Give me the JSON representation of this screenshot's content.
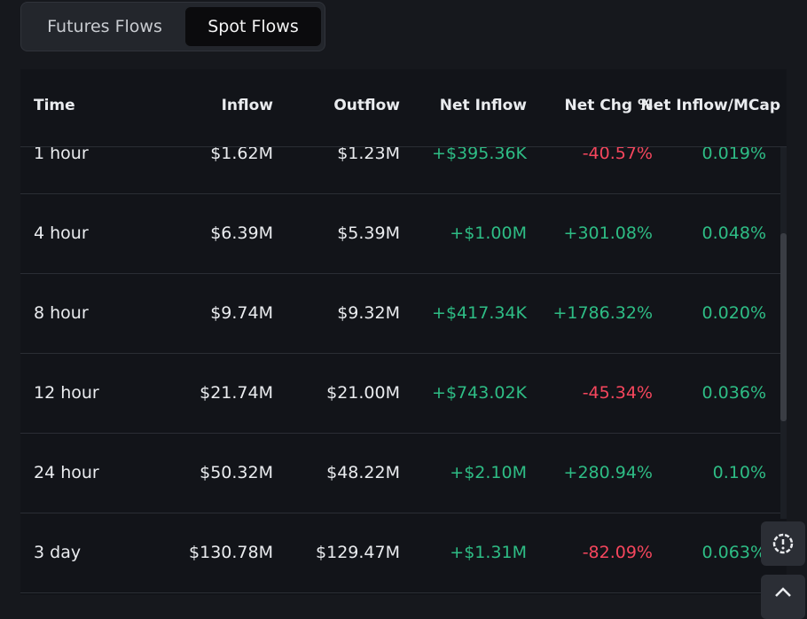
{
  "tabs": [
    "Futures Flows",
    "Spot Flows"
  ],
  "active_tab": 1,
  "table": {
    "columns": [
      "Time",
      "Inflow",
      "Outflow",
      "Net Inflow",
      "Net Chg %",
      "Net Inflow/MCap"
    ],
    "rows": [
      [
        "1 hour",
        "$1.62M",
        "$1.23M",
        "+$395.36K",
        "-40.57%",
        "0.019%"
      ],
      [
        "4 hour",
        "$6.39M",
        "$5.39M",
        "+$1.00M",
        "+301.08%",
        "0.048%"
      ],
      [
        "8 hour",
        "$9.74M",
        "$9.32M",
        "+$417.34K",
        "+1786.32%",
        "0.020%"
      ],
      [
        "12 hour",
        "$21.74M",
        "$21.00M",
        "+$743.02K",
        "-45.34%",
        "0.036%"
      ],
      [
        "24 hour",
        "$50.32M",
        "$48.22M",
        "+$2.10M",
        "+280.94%",
        "0.10%"
      ],
      [
        "3 day",
        "$130.78M",
        "$129.47M",
        "+$1.31M",
        "-82.09%",
        "0.063%"
      ]
    ]
  }
}
